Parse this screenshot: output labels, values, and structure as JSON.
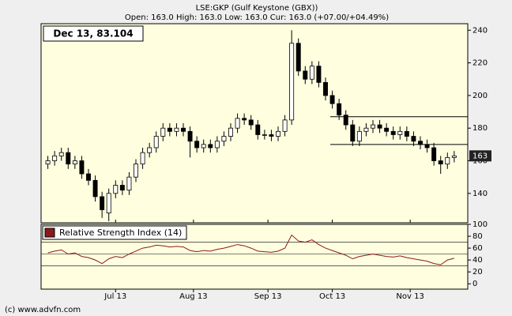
{
  "chart_data": [
    {
      "type": "candlestick",
      "title": "LSE:GKP (Gulf Keystone (GBX))",
      "subtitle": "Open: 163.0 High: 163.0 Low: 163.0 Cur: 163.0 (+07.00/+04.49%)",
      "annotation": "Dec 13, 83.104",
      "open": [
        158,
        160,
        163,
        165,
        158,
        160,
        152,
        148,
        138,
        128,
        140,
        145,
        142,
        150,
        158,
        165,
        168,
        175,
        180,
        178,
        180,
        178,
        172,
        168,
        170,
        168,
        172,
        175,
        180,
        186,
        185,
        182,
        176,
        176,
        175,
        178,
        185,
        232,
        215,
        210,
        218,
        208,
        200,
        195,
        188,
        182,
        172,
        178,
        180,
        182,
        180,
        178,
        176,
        178,
        175,
        172,
        170,
        168,
        160,
        158,
        162
      ],
      "high": [
        163,
        166,
        168,
        168,
        163,
        163,
        155,
        151,
        141,
        143,
        148,
        148,
        153,
        161,
        168,
        171,
        178,
        183,
        183,
        183,
        183,
        181,
        175,
        173,
        173,
        175,
        178,
        183,
        189,
        189,
        188,
        185,
        179,
        179,
        181,
        188,
        240,
        235,
        218,
        221,
        221,
        211,
        203,
        198,
        191,
        185,
        181,
        183,
        185,
        185,
        183,
        181,
        181,
        181,
        178,
        175,
        173,
        171,
        163,
        165,
        166
      ],
      "low": [
        155,
        157,
        160,
        155,
        155,
        149,
        145,
        135,
        125,
        123,
        137,
        139,
        139,
        147,
        155,
        162,
        165,
        172,
        175,
        175,
        175,
        162,
        165,
        165,
        165,
        165,
        169,
        172,
        177,
        182,
        179,
        173,
        173,
        172,
        172,
        175,
        182,
        212,
        207,
        207,
        205,
        197,
        192,
        185,
        179,
        169,
        169,
        175,
        177,
        177,
        175,
        173,
        173,
        172,
        169,
        167,
        165,
        157,
        152,
        155,
        159
      ],
      "close": [
        160,
        163,
        165,
        158,
        160,
        152,
        148,
        138,
        130,
        140,
        145,
        142,
        150,
        158,
        165,
        168,
        175,
        180,
        178,
        180,
        178,
        172,
        168,
        170,
        168,
        172,
        175,
        180,
        186,
        185,
        182,
        176,
        176,
        175,
        178,
        185,
        232,
        215,
        210,
        218,
        208,
        200,
        195,
        188,
        182,
        172,
        178,
        180,
        182,
        180,
        178,
        176,
        178,
        175,
        172,
        170,
        168,
        160,
        158,
        162,
        163
      ],
      "up_color": "#ffffff",
      "down_color": "#000000",
      "reference_lines": [
        187,
        170
      ],
      "last_price": 163,
      "xlim": [
        -1,
        62
      ],
      "ylim": [
        122,
        244
      ],
      "yticks": [
        140,
        160,
        180,
        200,
        220,
        240
      ]
    },
    {
      "type": "line",
      "legend": "Relative Strength Index (14)",
      "color": "#8b1a1a",
      "values": [
        52,
        55,
        57,
        50,
        52,
        46,
        44,
        40,
        34,
        42,
        46,
        44,
        50,
        55,
        60,
        62,
        65,
        64,
        62,
        63,
        62,
        56,
        54,
        56,
        55,
        58,
        60,
        63,
        66,
        64,
        60,
        55,
        54,
        53,
        55,
        60,
        82,
        72,
        70,
        74,
        66,
        60,
        56,
        52,
        48,
        42,
        46,
        48,
        50,
        48,
        46,
        45,
        47,
        44,
        42,
        40,
        38,
        34,
        32,
        40,
        43
      ],
      "levels": [
        70,
        50,
        30
      ],
      "xlim": [
        -1,
        62
      ],
      "xticks": [
        {
          "value": 10,
          "label": "Jul 13"
        },
        {
          "value": 21.5,
          "label": "Aug 13"
        },
        {
          "value": 32.5,
          "label": "Sep 13"
        },
        {
          "value": 42,
          "label": "Oct 13"
        },
        {
          "value": 53.5,
          "label": "Nov 13"
        }
      ],
      "ylim": [
        -9,
        100
      ],
      "yticks": [
        0,
        20,
        40,
        60,
        80,
        100
      ]
    }
  ],
  "footer": "(c) www.advfn.com"
}
